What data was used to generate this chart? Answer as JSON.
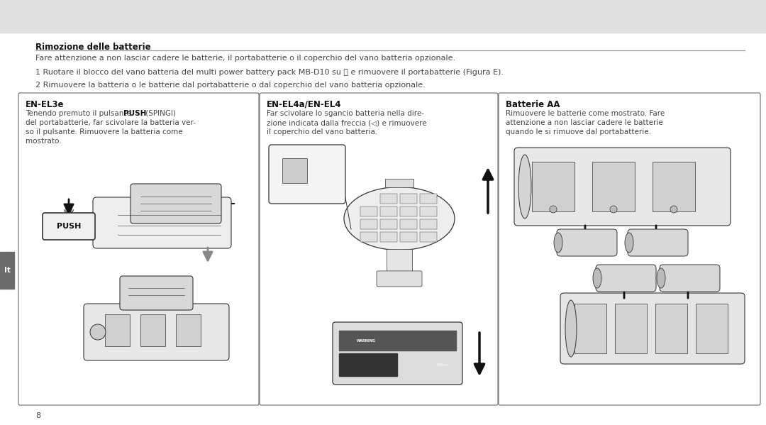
{
  "bg_header_color": "#e0e0e0",
  "bg_main_color": "#ffffff",
  "sidebar_color": "#6b6b6b",
  "sidebar_label": "It",
  "section_title": "Rimozione delle batterie",
  "section_title_underline": "#888888",
  "warning_text": "Fare attenzione a non lasciar cadere le batterie, il portabatterie o il coperchio del vano batteria opzionale.",
  "step1": "1 Ruotare il blocco del vano batteria del multi power battery pack MB-D10 su ⓢ e rimuovere il portabatterie (Figura E).",
  "step2": "2 Rimuovere la batteria o le batterie dal portabatterie o dal coperchio del vano batteria opzionale.",
  "box1_title": "EN-EL3e",
  "box2_title": "EN-EL4a/EN-EL4",
  "box3_title": "Batterie AA",
  "box1_text_line1": "Tenendo premuto il pulsante ",
  "box1_text_bold": "PUSH",
  "box1_text_line1b": " (SPINGI)",
  "box1_text_line2": "del portabatterie, far scivolare la batteria ver-",
  "box1_text_line3": "so il pulsante. Rimuovere la batteria come",
  "box1_text_line4": "mostrato.",
  "box2_text_line1": "Far scivolare lo sgancio batteria nella dire-",
  "box2_text_line2": "zione indicata dalla freccia (◁) e rimuovere",
  "box2_text_line3": "il coperchio del vano batteria.",
  "box3_text_line1": "Rimuovere le batterie come mostrato. Fare",
  "box3_text_line2": "attenzione a non lasciar cadere le batterie",
  "box3_text_line3": "quando le si rimuove dal portabatterie.",
  "page_number": "8",
  "box_border_color": "#555555",
  "text_color": "#444444",
  "title_bold_color": "#111111",
  "arrow_dark": "#111111",
  "arrow_gray": "#888888",
  "diagram_line": "#333333",
  "diagram_fill": "#d8d8d8",
  "diagram_fill2": "#c0c0c0"
}
